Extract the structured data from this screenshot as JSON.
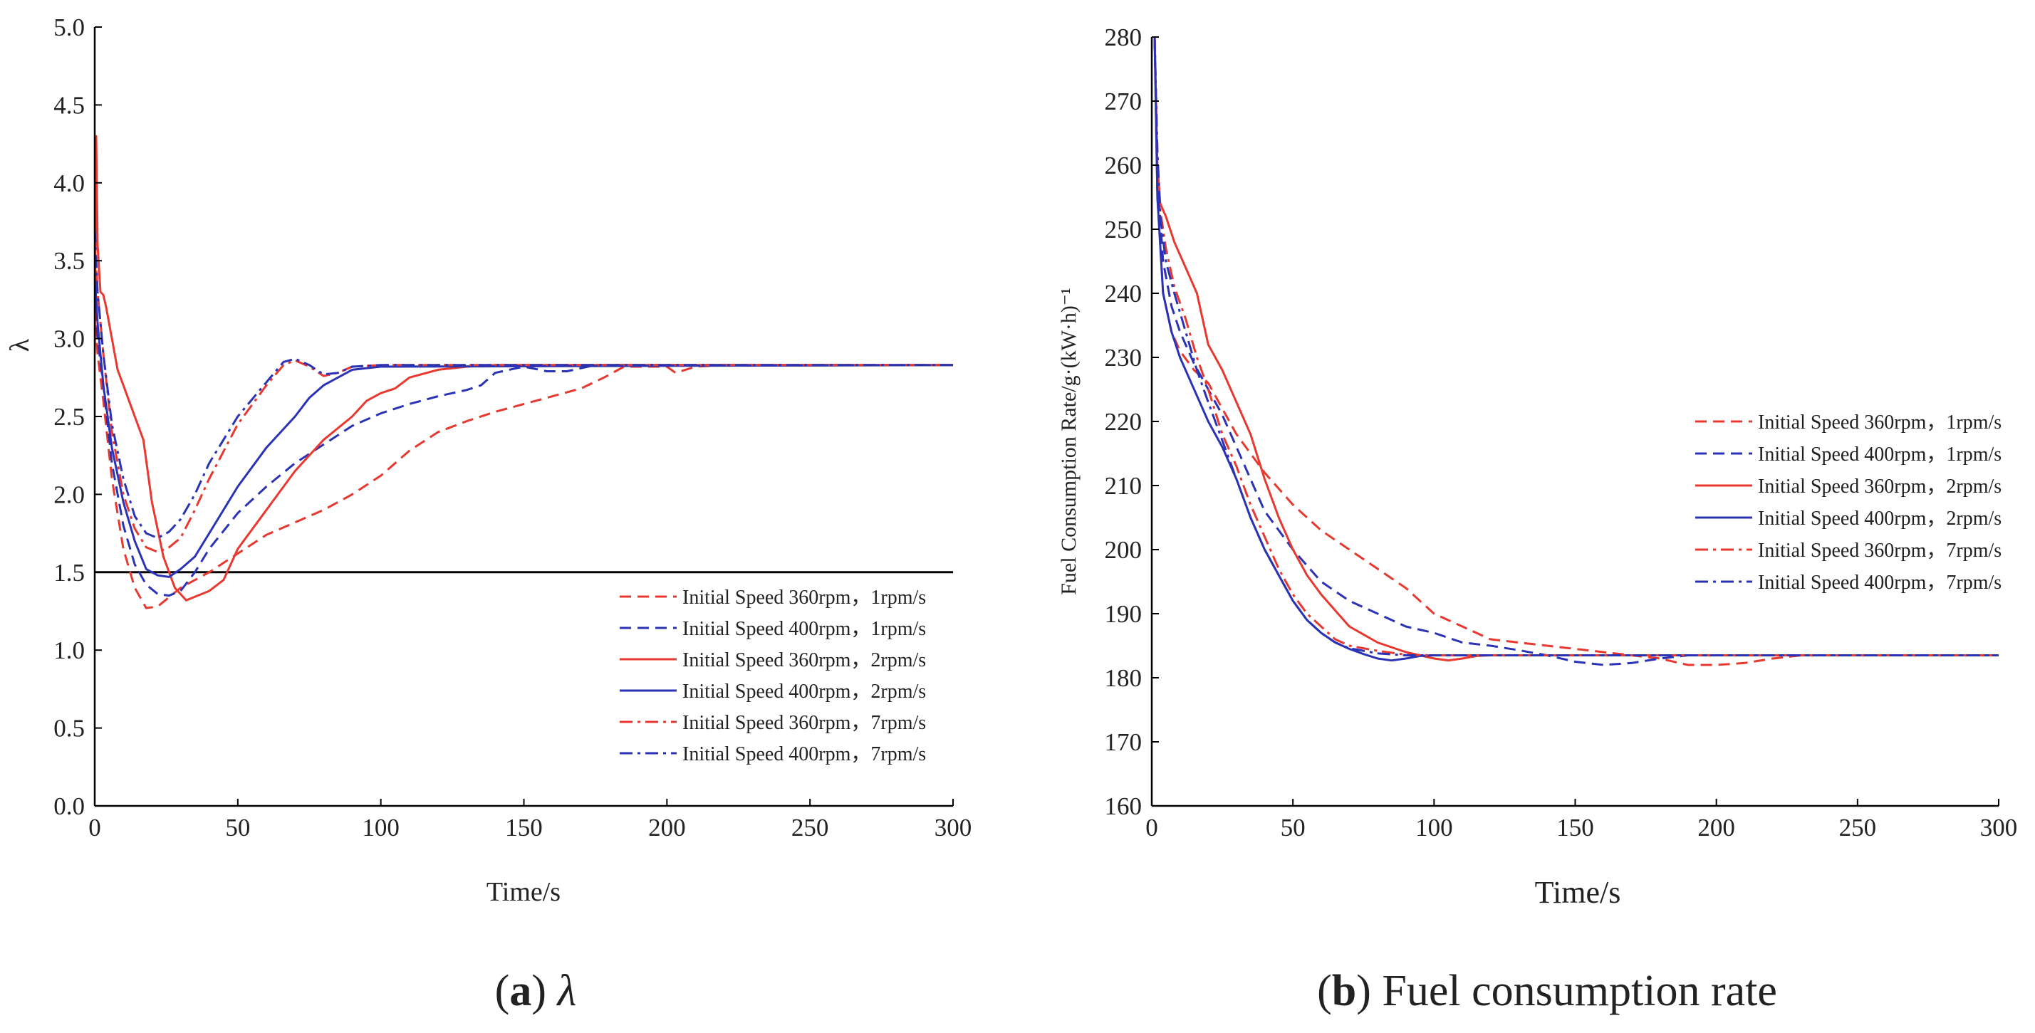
{
  "figure": {
    "caption_a": {
      "prefix": "(",
      "letter": "a",
      "suffix": ")",
      "text": "λ"
    },
    "caption_b": {
      "prefix": "(",
      "letter": "b",
      "suffix": ")",
      "text": "Fuel consumption rate"
    }
  },
  "colors": {
    "red": "#e8382f",
    "blue": "#2a33b5",
    "reference": "#000000"
  },
  "chart_data": [
    {
      "id": "lambda",
      "type": "line",
      "title": "",
      "xlabel": "Time/s",
      "ylabel": "λ",
      "xlim": [
        0,
        300
      ],
      "ylim": [
        0,
        5
      ],
      "xticks": [
        0,
        50,
        100,
        150,
        200,
        250,
        300
      ],
      "yticks": [
        "0.0",
        "0.5",
        "1.0",
        "1.5",
        "2.0",
        "2.5",
        "3.0",
        "3.5",
        "4.0",
        "4.5",
        "5.0"
      ],
      "reference_line": {
        "y": 1.5
      },
      "legend_position": "lower-right",
      "series": [
        {
          "name": "Initial Speed 360rpm，1rpm/s",
          "color": "#e8382f",
          "dash": "dashed",
          "x": [
            0,
            1,
            3,
            6,
            10,
            14,
            18,
            22,
            26,
            30,
            35,
            40,
            50,
            60,
            70,
            80,
            90,
            100,
            110,
            120,
            130,
            140,
            150,
            160,
            170,
            178,
            185,
            200,
            203,
            210,
            220,
            300
          ],
          "y": [
            3.2,
            2.9,
            2.6,
            2.1,
            1.65,
            1.4,
            1.27,
            1.28,
            1.34,
            1.4,
            1.45,
            1.5,
            1.62,
            1.74,
            1.82,
            1.9,
            2.0,
            2.12,
            2.28,
            2.4,
            2.47,
            2.53,
            2.58,
            2.63,
            2.68,
            2.75,
            2.82,
            2.82,
            2.78,
            2.82,
            2.83,
            2.83
          ]
        },
        {
          "name": "Initial Speed 400rpm，1rpm/s",
          "color": "#2a33b5",
          "dash": "dashed",
          "x": [
            0,
            1,
            3,
            6,
            10,
            14,
            18,
            22,
            26,
            30,
            35,
            40,
            50,
            60,
            70,
            80,
            90,
            100,
            110,
            120,
            130,
            135,
            140,
            150,
            158,
            165,
            175,
            300
          ],
          "y": [
            3.3,
            3.0,
            2.7,
            2.2,
            1.8,
            1.55,
            1.42,
            1.36,
            1.35,
            1.38,
            1.5,
            1.65,
            1.88,
            2.05,
            2.2,
            2.32,
            2.44,
            2.52,
            2.58,
            2.63,
            2.67,
            2.7,
            2.78,
            2.82,
            2.79,
            2.79,
            2.83,
            2.83
          ]
        },
        {
          "name": "Initial Speed 360rpm，2rpm/s",
          "color": "#e8382f",
          "dash": "solid",
          "x": [
            0,
            0.5,
            1,
            2,
            3,
            4,
            6,
            8,
            10,
            14,
            17,
            20,
            24,
            28,
            32,
            36,
            40,
            45,
            50,
            60,
            70,
            80,
            90,
            95,
            100,
            105,
            110,
            120,
            130,
            140,
            300
          ],
          "y": [
            2.9,
            4.3,
            3.6,
            3.3,
            3.28,
            3.2,
            3.0,
            2.8,
            2.7,
            2.5,
            2.35,
            1.95,
            1.6,
            1.4,
            1.32,
            1.35,
            1.38,
            1.45,
            1.65,
            1.9,
            2.15,
            2.35,
            2.5,
            2.6,
            2.65,
            2.68,
            2.75,
            2.8,
            2.82,
            2.83,
            2.83
          ]
        },
        {
          "name": "Initial Speed 400rpm，2rpm/s",
          "color": "#2a33b5",
          "dash": "solid",
          "x": [
            0,
            1,
            3,
            6,
            10,
            14,
            18,
            22,
            26,
            30,
            35,
            40,
            50,
            60,
            70,
            75,
            80,
            85,
            90,
            100,
            300
          ],
          "y": [
            3.4,
            3.1,
            2.7,
            2.3,
            1.95,
            1.7,
            1.52,
            1.48,
            1.47,
            1.52,
            1.6,
            1.75,
            2.05,
            2.3,
            2.5,
            2.62,
            2.7,
            2.75,
            2.8,
            2.82,
            2.83
          ]
        },
        {
          "name": "Initial Speed 360rpm，7rpm/s",
          "color": "#e8382f",
          "dash": "dashdot",
          "x": [
            0,
            1,
            3,
            6,
            10,
            14,
            18,
            22,
            26,
            30,
            35,
            40,
            50,
            60,
            66,
            70,
            75,
            80,
            85,
            90,
            100,
            300
          ],
          "y": [
            3.6,
            3.3,
            2.9,
            2.4,
            2.0,
            1.78,
            1.66,
            1.63,
            1.66,
            1.72,
            1.9,
            2.1,
            2.45,
            2.7,
            2.83,
            2.86,
            2.82,
            2.76,
            2.78,
            2.82,
            2.83,
            2.83
          ]
        },
        {
          "name": "Initial Speed 400rpm，7rpm/s",
          "color": "#2a33b5",
          "dash": "dashdot",
          "x": [
            0,
            1,
            3,
            6,
            10,
            14,
            18,
            22,
            26,
            30,
            35,
            40,
            50,
            60,
            66,
            70,
            75,
            80,
            85,
            90,
            100,
            300
          ],
          "y": [
            3.7,
            3.3,
            2.9,
            2.45,
            2.1,
            1.86,
            1.75,
            1.72,
            1.76,
            1.84,
            2.0,
            2.2,
            2.5,
            2.72,
            2.85,
            2.87,
            2.83,
            2.77,
            2.78,
            2.82,
            2.83,
            2.83
          ]
        }
      ]
    },
    {
      "id": "fuel",
      "type": "line",
      "title": "",
      "xlabel": "Time/s",
      "ylabel": "Fuel Consumption Rate/g·(kW·h)⁻¹",
      "xlim": [
        0,
        300
      ],
      "ylim": [
        160,
        280
      ],
      "xticks": [
        0,
        50,
        100,
        150,
        200,
        250,
        300
      ],
      "yticks": [
        160,
        170,
        180,
        190,
        200,
        210,
        220,
        230,
        240,
        250,
        260,
        270,
        280
      ],
      "legend_position": "right",
      "series": [
        {
          "name": "Initial Speed 360rpm，1rpm/s",
          "color": "#e8382f",
          "dash": "dashed",
          "x": [
            1,
            2,
            4,
            7,
            10,
            15,
            20,
            25,
            30,
            40,
            50,
            60,
            70,
            80,
            90,
            100,
            110,
            120,
            140,
            160,
            180,
            190,
            200,
            210,
            220,
            230,
            240,
            300
          ],
          "y": [
            280,
            255,
            240,
            234,
            231,
            228,
            226,
            222,
            218,
            212,
            207,
            203,
            200,
            197,
            194,
            190,
            188,
            186,
            185,
            184,
            183,
            182,
            182,
            182.3,
            183,
            183.5,
            183.5,
            183.5
          ]
        },
        {
          "name": "Initial Speed 400rpm，1rpm/s",
          "color": "#2a33b5",
          "dash": "dashed",
          "x": [
            1,
            2,
            4,
            7,
            10,
            15,
            20,
            25,
            30,
            35,
            40,
            50,
            60,
            70,
            80,
            90,
            100,
            110,
            120,
            130,
            140,
            150,
            160,
            170,
            180,
            190,
            300
          ],
          "y": [
            280,
            258,
            245,
            238,
            234,
            229,
            225,
            221,
            216,
            211,
            206,
            200,
            195,
            192,
            190,
            188,
            187,
            185.5,
            185,
            184.3,
            183.5,
            182.5,
            182,
            182.3,
            183,
            183.5,
            183.5
          ]
        },
        {
          "name": "Initial Speed 360rpm，2rpm/s",
          "color": "#e8382f",
          "dash": "solid",
          "x": [
            1,
            2,
            3,
            5,
            8,
            12,
            16,
            20,
            25,
            30,
            35,
            40,
            45,
            50,
            55,
            60,
            70,
            80,
            90,
            100,
            105,
            110,
            115,
            120,
            300
          ],
          "y": [
            280,
            260,
            254,
            252,
            248,
            244,
            240,
            232,
            228,
            223,
            218,
            211,
            205,
            200,
            196,
            193,
            188,
            185.5,
            184,
            183,
            182.7,
            183,
            183.4,
            183.5,
            183.5
          ]
        },
        {
          "name": "Initial Speed 400rpm，2rpm/s",
          "color": "#2a33b5",
          "dash": "solid",
          "x": [
            1,
            2,
            4,
            7,
            10,
            15,
            20,
            25,
            30,
            35,
            40,
            45,
            50,
            55,
            60,
            65,
            70,
            75,
            80,
            85,
            90,
            95,
            100,
            300
          ],
          "y": [
            280,
            255,
            240,
            234,
            230,
            225,
            220,
            216,
            211,
            205,
            200,
            196,
            192,
            189,
            187,
            185.5,
            184.5,
            183.7,
            183,
            182.7,
            183,
            183.4,
            183.5,
            183.5
          ]
        },
        {
          "name": "Initial Speed 360rpm，7rpm/s",
          "color": "#e8382f",
          "dash": "dashdot",
          "x": [
            1,
            2,
            3,
            5,
            8,
            12,
            16,
            20,
            25,
            30,
            35,
            40,
            45,
            50,
            55,
            60,
            65,
            70,
            80,
            90,
            100,
            300
          ],
          "y": [
            280,
            262,
            253,
            247,
            241,
            236,
            230,
            225,
            218,
            213,
            207,
            202,
            197,
            193,
            190,
            188,
            186,
            185,
            184.2,
            183.6,
            183.5,
            183.5
          ]
        },
        {
          "name": "Initial Speed 400rpm，7rpm/s",
          "color": "#2a33b5",
          "dash": "dashdot",
          "x": [
            1,
            2,
            3,
            5,
            8,
            12,
            16,
            20,
            25,
            30,
            35,
            40,
            45,
            50,
            55,
            60,
            65,
            70,
            80,
            90,
            100,
            300
          ],
          "y": [
            280,
            262,
            252,
            245,
            240,
            234,
            228,
            223,
            217,
            211,
            205,
            200,
            196,
            192,
            189,
            187,
            185.5,
            184.6,
            183.8,
            183.5,
            183.5,
            183.5
          ]
        }
      ]
    }
  ]
}
